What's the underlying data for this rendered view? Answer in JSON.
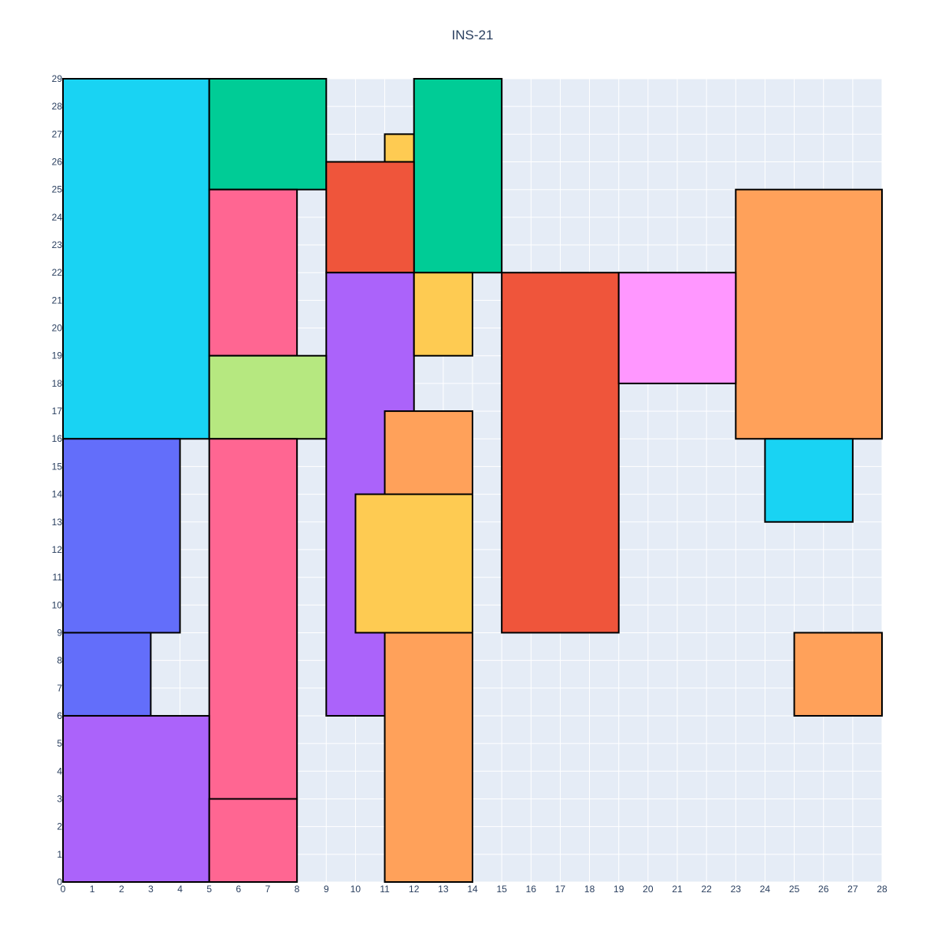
{
  "chart_data": {
    "type": "rectangles",
    "title": "INS-21",
    "xlim": [
      0,
      28
    ],
    "ylim": [
      0,
      29
    ],
    "x_ticks": [
      0,
      1,
      2,
      3,
      4,
      5,
      6,
      7,
      8,
      9,
      10,
      11,
      12,
      13,
      14,
      15,
      16,
      17,
      18,
      19,
      20,
      21,
      22,
      23,
      24,
      25,
      26,
      27,
      28
    ],
    "y_ticks": [
      0,
      1,
      2,
      3,
      4,
      5,
      6,
      7,
      8,
      9,
      10,
      11,
      12,
      13,
      14,
      15,
      16,
      17,
      18,
      19,
      20,
      21,
      22,
      23,
      24,
      25,
      26,
      27,
      28,
      29
    ],
    "grid": true,
    "background": "#e5ecf6",
    "rectangles": [
      {
        "x0": 0,
        "x1": 5,
        "y0": 16,
        "y1": 29,
        "color": "#19d3f3"
      },
      {
        "x0": 5,
        "x1": 9,
        "y0": 25,
        "y1": 29,
        "color": "#00cc96"
      },
      {
        "x0": 11,
        "x1": 12,
        "y0": 26,
        "y1": 27,
        "color": "#fecb52"
      },
      {
        "x0": 12,
        "x1": 15,
        "y0": 22,
        "y1": 29,
        "color": "#00cc96"
      },
      {
        "x0": 9,
        "x1": 12,
        "y0": 22,
        "y1": 26,
        "color": "#ef553b"
      },
      {
        "x0": 5,
        "x1": 8,
        "y0": 19,
        "y1": 25,
        "color": "#ff6692"
      },
      {
        "x0": 23,
        "x1": 28,
        "y0": 16,
        "y1": 25,
        "color": "#ffa15a"
      },
      {
        "x0": 9,
        "x1": 12,
        "y0": 6,
        "y1": 22,
        "color": "#ab63fa"
      },
      {
        "x0": 12,
        "x1": 14,
        "y0": 19,
        "y1": 22,
        "color": "#fecb52"
      },
      {
        "x0": 15,
        "x1": 19,
        "y0": 9,
        "y1": 22,
        "color": "#ef553b"
      },
      {
        "x0": 19,
        "x1": 23,
        "y0": 18,
        "y1": 22,
        "color": "#ff97ff"
      },
      {
        "x0": 5,
        "x1": 9,
        "y0": 16,
        "y1": 19,
        "color": "#b6e880"
      },
      {
        "x0": 11,
        "x1": 14,
        "y0": 0,
        "y1": 17,
        "color": "#ffa15a"
      },
      {
        "x0": 0,
        "x1": 4,
        "y0": 9,
        "y1": 16,
        "color": "#636efa"
      },
      {
        "x0": 5,
        "x1": 8,
        "y0": 3,
        "y1": 16,
        "color": "#ff6692"
      },
      {
        "x0": 24,
        "x1": 27,
        "y0": 13,
        "y1": 16,
        "color": "#19d3f3"
      },
      {
        "x0": 10,
        "x1": 14,
        "y0": 9,
        "y1": 14,
        "color": "#fecb52"
      },
      {
        "x0": 0,
        "x1": 3,
        "y0": 6,
        "y1": 9,
        "color": "#636efa"
      },
      {
        "x0": 25,
        "x1": 28,
        "y0": 6,
        "y1": 9,
        "color": "#ffa15a"
      },
      {
        "x0": 0,
        "x1": 5,
        "y0": 0,
        "y1": 6,
        "color": "#ab63fa"
      },
      {
        "x0": 5,
        "x1": 8,
        "y0": 0,
        "y1": 3,
        "color": "#ff6692"
      }
    ]
  }
}
